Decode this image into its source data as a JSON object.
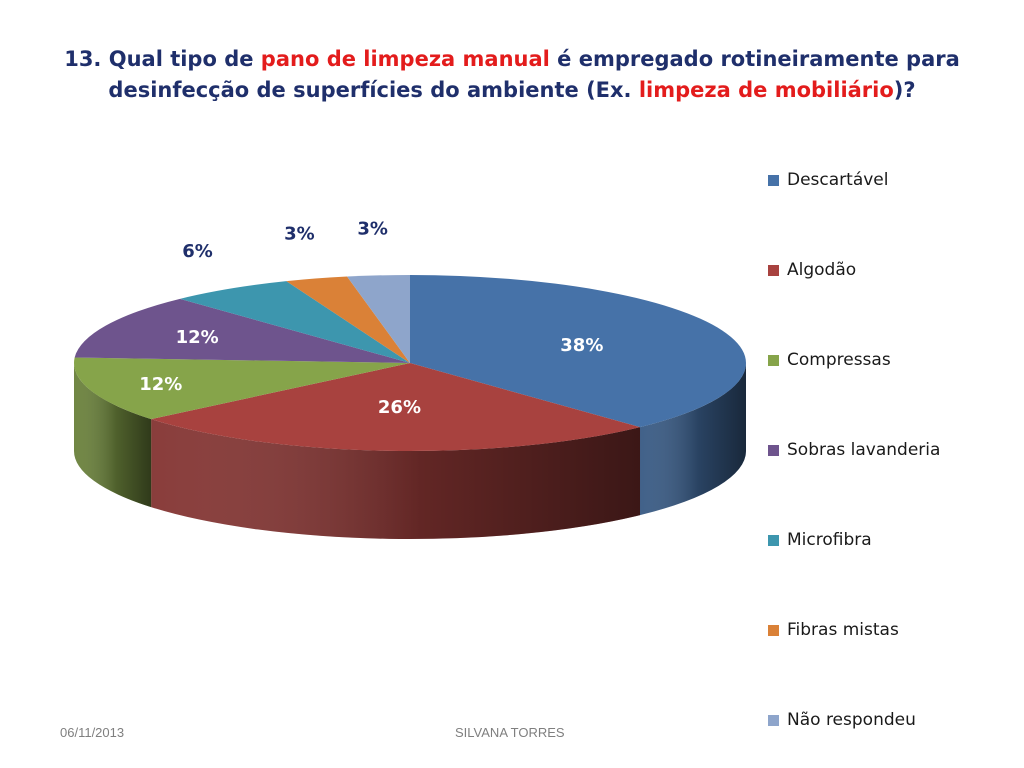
{
  "slide": {
    "title_segments": [
      {
        "text": "13. Qual tipo de ",
        "highlight": false
      },
      {
        "text": "pano de limpeza manual",
        "highlight": true
      },
      {
        "text": " é empregado rotineiramente para desinfecção de superfícies do ambiente (Ex. ",
        "highlight": false
      },
      {
        "text": "limpeza de mobiliário",
        "highlight": true
      },
      {
        "text": ")?",
        "highlight": false
      }
    ],
    "title_color": "#1f2f6b",
    "highlight_color": "#e31c1c"
  },
  "chart_data": {
    "type": "pie",
    "variant": "3d",
    "legend_position": "right",
    "categories": [
      "Descartável",
      "Algodão",
      "Compressas",
      "Sobras lavanderia",
      "Microfibra",
      "Fibras mistas",
      "Não respondeu"
    ],
    "values": [
      38,
      26,
      12,
      12,
      6,
      3,
      3
    ],
    "value_labels": [
      "38%",
      "26%",
      "12%",
      "12%",
      "6%",
      "3%",
      "3%"
    ],
    "colors": [
      "#4672a8",
      "#a8423f",
      "#86a44a",
      "#6e548d",
      "#3d96ae",
      "#da8137",
      "#8ea5cb"
    ]
  },
  "footer": {
    "date": "06/11/2013",
    "author": "SILVANA TORRES"
  }
}
